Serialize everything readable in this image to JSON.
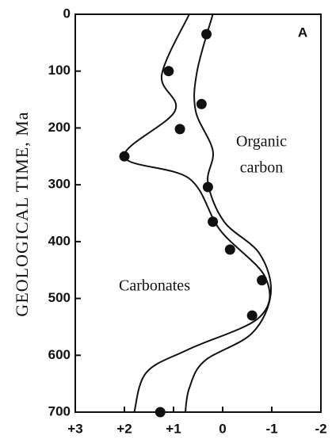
{
  "chart_data": {
    "type": "scatter",
    "y_label": "GEOLOGICAL TIME, Ma",
    "panel_label": "A",
    "annotations": [
      "Organic",
      "carbon",
      "Carbonates"
    ],
    "x": [
      0.33,
      1.1,
      0.43,
      0.87,
      2.0,
      0.3,
      0.2,
      -0.15,
      -0.8,
      -0.6,
      1.27
    ],
    "values": [
      35,
      100,
      158,
      202,
      250,
      304,
      365,
      414,
      468,
      530,
      700
    ],
    "color": "#111111",
    "curves": [
      {
        "x": [
          0.68,
          1.24,
          0.97,
          2.0,
          0.68,
          0.05,
          -0.87,
          -0.75,
          0.68,
          1.55,
          1.8
        ],
        "values": [
          0,
          107,
          170,
          250,
          289,
          380,
          463,
          533,
          589,
          630,
          700
        ]
      },
      {
        "x": [
          0.2,
          0.52,
          0.55,
          0.2,
          0.3,
          -0.03,
          -0.75,
          -0.98,
          -0.6,
          0.37,
          0.68,
          0.76
        ],
        "values": [
          0,
          100,
          170,
          240,
          296,
          365,
          421,
          491,
          561,
          610,
          658,
          700
        ]
      }
    ],
    "xlim": [
      3,
      -2
    ],
    "ylim": [
      700,
      0
    ],
    "xticks": [
      {
        "value": 3,
        "label": "+3"
      },
      {
        "value": 2,
        "label": "+2"
      },
      {
        "value": 1,
        "label": "+1"
      },
      0,
      -1,
      -2
    ],
    "yticks": [
      0,
      100,
      200,
      300,
      400,
      500,
      600,
      700
    ]
  }
}
